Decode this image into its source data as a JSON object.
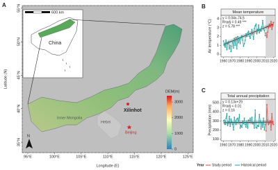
{
  "map": {
    "panel": "A",
    "ylabel": "Latitude (N)",
    "xlabel": "Longitude (E)",
    "ylim": [
      33.45,
      55.4
    ],
    "xlim": [
      93.96,
      126.0
    ],
    "yticks": [
      {
        "value": 35,
        "label": "35°N"
      },
      {
        "value": 40,
        "label": "40°N"
      },
      {
        "value": 45,
        "label": "45°N"
      },
      {
        "value": 50,
        "label": "50°N"
      },
      {
        "value": 55,
        "label": "55°N"
      }
    ],
    "xticks": [
      {
        "value": 95,
        "label": "95°E"
      },
      {
        "value": 100,
        "label": "100°E"
      },
      {
        "value": 105,
        "label": "105°E"
      },
      {
        "value": 110,
        "label": "110°E"
      },
      {
        "value": 115,
        "label": "115°E"
      },
      {
        "value": 120,
        "label": "120°E"
      },
      {
        "value": 125,
        "label": "125°E"
      }
    ],
    "scale_label": "600 km",
    "inset_label": "China",
    "station": "Xilinhot",
    "capital": "Beijing",
    "regions": [
      "Inner Mongolia",
      "Hebei"
    ],
    "north": "N",
    "dem": {
      "title": "DEM(m)",
      "lim": [
        0,
        3400
      ],
      "ticks": [
        0,
        1000,
        2000,
        3000
      ]
    }
  },
  "chart_data": [
    {
      "type": "line",
      "panel": "B",
      "title": "Mean temperature",
      "ylabel": "Air temperature (°C)",
      "annotations": [
        "y = 0.04x-74.5",
        "R²adj = 0.49 ***",
        "z = 5.78 ***"
      ],
      "xlim": [
        1957,
        2022
      ],
      "xticks": [
        1960,
        1970,
        1980,
        1990,
        2000,
        2010,
        2020
      ],
      "ylim": [
        -0.3,
        4.4
      ],
      "yticks": [
        0,
        1,
        2,
        3,
        4
      ],
      "shade": [
        2010.5,
        2021
      ],
      "trend": {
        "x": [
          1960,
          2020
        ],
        "values": [
          1.1,
          3.4
        ]
      },
      "series": [
        {
          "name": "Historical period",
          "color": "#1a9e9e",
          "x": [
            1960,
            1961,
            1962,
            1963,
            1964,
            1965,
            1966,
            1967,
            1968,
            1969,
            1970,
            1971,
            1972,
            1973,
            1974,
            1975,
            1976,
            1977,
            1978,
            1979,
            1980,
            1981,
            1982,
            1983,
            1984,
            1985,
            1986,
            1987,
            1988,
            1989,
            1990,
            1991,
            1992,
            1993,
            1994,
            1995,
            1996,
            1997,
            1998,
            1999,
            2000,
            2001,
            2002,
            2003,
            2004,
            2005,
            2006,
            2007,
            2008,
            2009,
            2010
          ],
          "values": [
            1.5,
            1.0,
            0.8,
            1.6,
            0.5,
            1.2,
            1.4,
            0.6,
            1.0,
            0.3,
            0.9,
            1.5,
            0.7,
            1.8,
            1.0,
            1.9,
            0.6,
            2.0,
            1.3,
            1.7,
            1.2,
            1.9,
            2.1,
            1.6,
            0.9,
            1.2,
            1.6,
            2.3,
            2.0,
            2.4,
            2.6,
            2.0,
            1.8,
            2.2,
            2.8,
            2.3,
            1.7,
            2.9,
            3.2,
            3.4,
            2.3,
            2.8,
            3.3,
            2.4,
            2.8,
            2.6,
            3.1,
            3.8,
            2.9,
            2.7,
            2.1
          ]
        },
        {
          "name": "Study period",
          "color": "#e8413c",
          "x": [
            2011,
            2012,
            2013,
            2014,
            2015,
            2016,
            2017,
            2018,
            2019,
            2020
          ],
          "values": [
            2.4,
            1.9,
            2.5,
            3.0,
            3.4,
            3.1,
            3.7,
            2.8,
            3.2,
            3.6
          ]
        }
      ]
    },
    {
      "type": "line",
      "panel": "C",
      "title": "Total annual precipitation",
      "ylabel": "Precipitation (mm)",
      "annotations": [
        "y = 0.13x+29",
        "R²adj < 0.01",
        "z = 0.16"
      ],
      "legend_title": "Year",
      "xlim": [
        1957,
        2022
      ],
      "xticks": [
        1960,
        1970,
        1980,
        1990,
        2000,
        2010,
        2020
      ],
      "ylim": [
        80,
        540
      ],
      "yticks": [
        100,
        200,
        300,
        400,
        500
      ],
      "shade": [
        2010.5,
        2021
      ],
      "trend": {
        "x": [
          1960,
          2020
        ],
        "values": [
          280,
          288
        ]
      },
      "series": [
        {
          "name": "Historical period",
          "color": "#1a9e9e",
          "x": [
            1960,
            1961,
            1962,
            1963,
            1964,
            1965,
            1966,
            1967,
            1968,
            1969,
            1970,
            1971,
            1972,
            1973,
            1974,
            1975,
            1976,
            1977,
            1978,
            1979,
            1980,
            1981,
            1982,
            1983,
            1984,
            1985,
            1986,
            1987,
            1988,
            1989,
            1990,
            1991,
            1992,
            1993,
            1994,
            1995,
            1996,
            1997,
            1998,
            1999,
            2000,
            2001,
            2002,
            2003,
            2004,
            2005,
            2006,
            2007,
            2008,
            2009,
            2010
          ],
          "values": [
            300,
            310,
            260,
            330,
            380,
            250,
            290,
            350,
            240,
            320,
            290,
            260,
            200,
            340,
            300,
            260,
            320,
            330,
            280,
            370,
            220,
            250,
            230,
            300,
            270,
            330,
            260,
            230,
            300,
            220,
            310,
            300,
            330,
            280,
            340,
            270,
            270,
            220,
            420,
            230,
            220,
            250,
            240,
            370,
            300,
            210,
            280,
            230,
            330,
            200,
            260
          ]
        },
        {
          "name": "Study period",
          "color": "#e8413c",
          "x": [
            2011,
            2012,
            2013,
            2014,
            2015,
            2016,
            2017,
            2018,
            2019,
            2020
          ],
          "values": [
            190,
            480,
            310,
            260,
            280,
            300,
            200,
            380,
            270,
            260
          ]
        }
      ]
    }
  ]
}
